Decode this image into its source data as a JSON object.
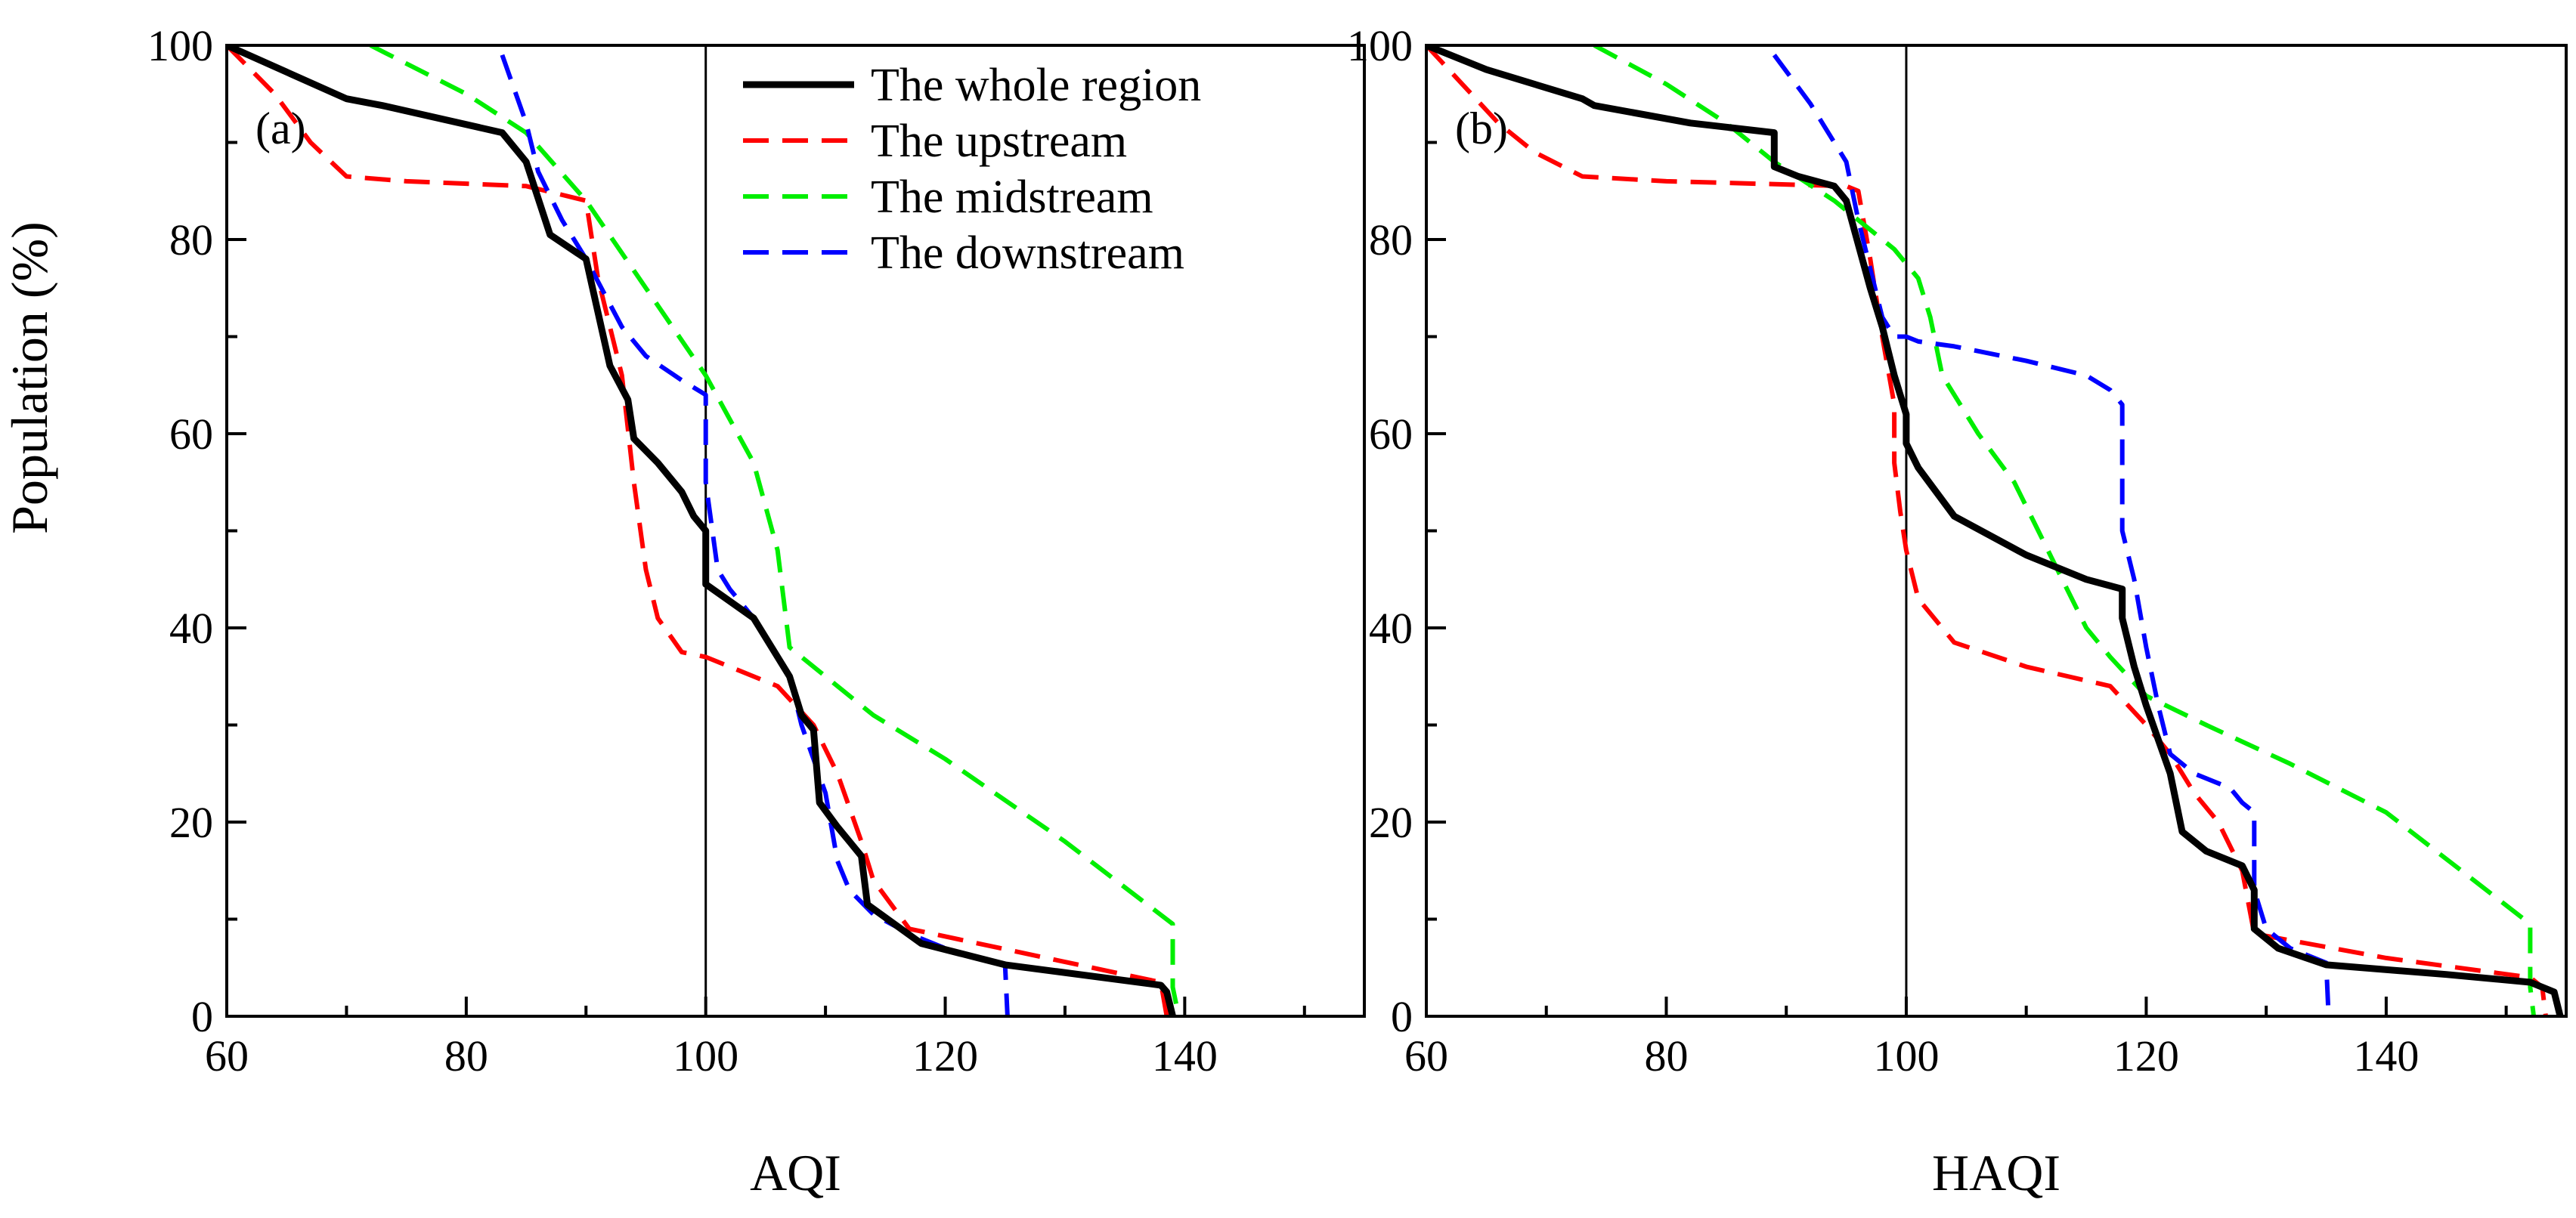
{
  "figure": {
    "ylabel": "Population (%)",
    "legend": {
      "placement": "top-right of panel (a)",
      "entries": [
        {
          "label": "The whole region",
          "color": "#000000",
          "style": "solid"
        },
        {
          "label": "The upstream",
          "color": "#ff0000",
          "style": "dashed"
        },
        {
          "label": "The midstream",
          "color": "#00ee00",
          "style": "dashed"
        },
        {
          "label": "The downstream",
          "color": "#0000ff",
          "style": "dashed"
        }
      ]
    }
  },
  "chart_data": [
    {
      "type": "line",
      "panel": "(a)",
      "xlabel": "AQI",
      "ylabel": "Population (%)",
      "xlim": [
        60,
        155
      ],
      "ylim": [
        0,
        100
      ],
      "xticks": [
        60,
        80,
        100,
        120,
        140
      ],
      "yticks": [
        0,
        20,
        40,
        60,
        80,
        100
      ],
      "vline": 100,
      "series": [
        {
          "name": "The whole region",
          "color": "#000000",
          "style": "solid",
          "points": [
            [
              60,
              100
            ],
            [
              70,
              94.5
            ],
            [
              73,
              93.8
            ],
            [
              83,
              91
            ],
            [
              85,
              88
            ],
            [
              87,
              80.5
            ],
            [
              90,
              78
            ],
            [
              92,
              67
            ],
            [
              93.5,
              63.5
            ],
            [
              94,
              59.5
            ],
            [
              96,
              57
            ],
            [
              98,
              54
            ],
            [
              99,
              51.5
            ],
            [
              100,
              50
            ],
            [
              100,
              44.5
            ],
            [
              104,
              41
            ],
            [
              107,
              35
            ],
            [
              108,
              31
            ],
            [
              109,
              29.5
            ],
            [
              109.5,
              22
            ],
            [
              111,
              19.5
            ],
            [
              112,
              18
            ],
            [
              113,
              16.5
            ],
            [
              113.5,
              11.5
            ],
            [
              118,
              7.5
            ],
            [
              125,
              5.3
            ],
            [
              138,
              3.2
            ],
            [
              138.5,
              2.5
            ],
            [
              139,
              0
            ]
          ]
        },
        {
          "name": "The upstream",
          "color": "#ff0000",
          "style": "dashed",
          "points": [
            [
              60,
              100
            ],
            [
              64,
              95
            ],
            [
              67,
              90
            ],
            [
              70,
              86.5
            ],
            [
              75,
              86
            ],
            [
              85,
              85.5
            ],
            [
              90,
              84
            ],
            [
              91,
              76
            ],
            [
              93,
              66
            ],
            [
              94,
              55
            ],
            [
              95,
              46
            ],
            [
              96,
              41
            ],
            [
              98,
              37.5
            ],
            [
              100,
              37
            ],
            [
              106,
              34
            ],
            [
              109,
              30
            ],
            [
              111,
              25
            ],
            [
              113,
              18
            ],
            [
              114,
              14
            ],
            [
              117,
              9
            ],
            [
              138,
              3.5
            ],
            [
              138.5,
              0
            ]
          ]
        },
        {
          "name": "The midstream",
          "color": "#00ee00",
          "style": "dashed",
          "points": [
            [
              72,
              100
            ],
            [
              80,
              95
            ],
            [
              85,
              91
            ],
            [
              90,
              84
            ],
            [
              95,
              75
            ],
            [
              100,
              66
            ],
            [
              104,
              57
            ],
            [
              106,
              48
            ],
            [
              107,
              38
            ],
            [
              108,
              37
            ],
            [
              114,
              31
            ],
            [
              120,
              26.5
            ],
            [
              130,
              18
            ],
            [
              139,
              9.5
            ],
            [
              139,
              3
            ],
            [
              139.5,
              0
            ]
          ]
        },
        {
          "name": "The downstream",
          "color": "#0000ff",
          "style": "dashed",
          "points": [
            [
              83,
              99
            ],
            [
              85,
              92
            ],
            [
              86,
              87
            ],
            [
              88,
              82
            ],
            [
              90,
              78
            ],
            [
              93,
              71
            ],
            [
              95,
              68
            ],
            [
              98,
              65.5
            ],
            [
              100,
              64
            ],
            [
              100,
              55
            ],
            [
              101,
              46
            ],
            [
              102,
              44
            ],
            [
              104,
              41
            ],
            [
              107,
              35
            ],
            [
              108,
              30
            ],
            [
              110,
              23
            ],
            [
              111,
              16
            ],
            [
              112,
              13
            ],
            [
              114,
              10.5
            ],
            [
              117,
              8.5
            ],
            [
              121,
              6.5
            ],
            [
              125,
              5.3
            ],
            [
              125.2,
              0
            ]
          ]
        }
      ]
    },
    {
      "type": "line",
      "panel": "(b)",
      "xlabel": "HAQI",
      "ylabel": "Population (%)",
      "xlim": [
        60,
        155
      ],
      "ylim": [
        0,
        100
      ],
      "xticks": [
        60,
        80,
        100,
        120,
        140
      ],
      "yticks": [
        0,
        20,
        40,
        60,
        80,
        100
      ],
      "vline": 100,
      "series": [
        {
          "name": "The whole region",
          "color": "#000000",
          "style": "solid",
          "points": [
            [
              60,
              100
            ],
            [
              65,
              97.5
            ],
            [
              73,
              94.5
            ],
            [
              74,
              93.8
            ],
            [
              82,
              92
            ],
            [
              89,
              91
            ],
            [
              89,
              87.5
            ],
            [
              91,
              86.5
            ],
            [
              94,
              85.5
            ],
            [
              95,
              84
            ],
            [
              97,
              75
            ],
            [
              98,
              71
            ],
            [
              99,
              66
            ],
            [
              100,
              62
            ],
            [
              100,
              59
            ],
            [
              101,
              56.5
            ],
            [
              104,
              51.5
            ],
            [
              110,
              47.5
            ],
            [
              115,
              45
            ],
            [
              118,
              44
            ],
            [
              118,
              41
            ],
            [
              119,
              36
            ],
            [
              120,
              32
            ],
            [
              122,
              25
            ],
            [
              123,
              19
            ],
            [
              125,
              17
            ],
            [
              128,
              15.5
            ],
            [
              129,
              13
            ],
            [
              129,
              9
            ],
            [
              131,
              7
            ],
            [
              135,
              5.3
            ],
            [
              145,
              4.3
            ],
            [
              152,
              3.5
            ],
            [
              154,
              2.5
            ],
            [
              154.5,
              0
            ]
          ]
        },
        {
          "name": "The upstream",
          "color": "#ff0000",
          "style": "dashed",
          "points": [
            [
              60,
              100
            ],
            [
              63,
              96
            ],
            [
              66,
              92
            ],
            [
              69,
              89
            ],
            [
              73,
              86.5
            ],
            [
              80,
              86
            ],
            [
              95,
              85.5
            ],
            [
              96,
              85
            ],
            [
              97,
              78
            ],
            [
              98,
              70
            ],
            [
              99,
              63
            ],
            [
              99,
              57
            ],
            [
              99.5,
              52
            ],
            [
              100,
              48
            ],
            [
              101,
              43
            ],
            [
              104,
              38.5
            ],
            [
              110,
              36
            ],
            [
              117,
              34
            ],
            [
              120,
              30
            ],
            [
              122,
              27
            ],
            [
              124,
              23
            ],
            [
              126,
              20
            ],
            [
              128,
              15
            ],
            [
              129,
              8.5
            ],
            [
              140,
              6
            ],
            [
              152,
              4
            ],
            [
              153,
              3
            ],
            [
              153.3,
              0
            ]
          ]
        },
        {
          "name": "The midstream",
          "color": "#00ee00",
          "style": "dashed",
          "points": [
            [
              74,
              100
            ],
            [
              80,
              96
            ],
            [
              85,
              92
            ],
            [
              89,
              88
            ],
            [
              94,
              84
            ],
            [
              96,
              82
            ],
            [
              99,
              79
            ],
            [
              101,
              76
            ],
            [
              102,
              72
            ],
            [
              103,
              66
            ],
            [
              106,
              60
            ],
            [
              109,
              55
            ],
            [
              111,
              50
            ],
            [
              113,
              45
            ],
            [
              115,
              40
            ],
            [
              117,
              37
            ],
            [
              120,
              33
            ],
            [
              125,
              30
            ],
            [
              132,
              26
            ],
            [
              140,
              21
            ],
            [
              152,
              9.5
            ],
            [
              152,
              3
            ],
            [
              152.3,
              0
            ]
          ]
        },
        {
          "name": "The downstream",
          "color": "#0000ff",
          "style": "dashed",
          "points": [
            [
              89,
              99
            ],
            [
              92,
              94
            ],
            [
              95,
              88
            ],
            [
              96,
              82
            ],
            [
              97,
              77
            ],
            [
              98,
              72
            ],
            [
              99,
              70
            ],
            [
              100,
              70
            ],
            [
              101,
              69.5
            ],
            [
              104,
              69
            ],
            [
              110,
              67.5
            ],
            [
              115,
              66
            ],
            [
              117,
              64.5
            ],
            [
              118,
              63
            ],
            [
              118,
              50
            ],
            [
              119,
              45
            ],
            [
              120,
              38
            ],
            [
              121,
              32
            ],
            [
              122,
              27
            ],
            [
              124,
              25
            ],
            [
              127,
              23.5
            ],
            [
              128,
              22
            ],
            [
              129,
              21
            ],
            [
              129,
              13
            ],
            [
              130,
              9
            ],
            [
              132,
              7
            ],
            [
              135,
              5.5
            ],
            [
              135.2,
              0
            ]
          ]
        }
      ]
    }
  ]
}
